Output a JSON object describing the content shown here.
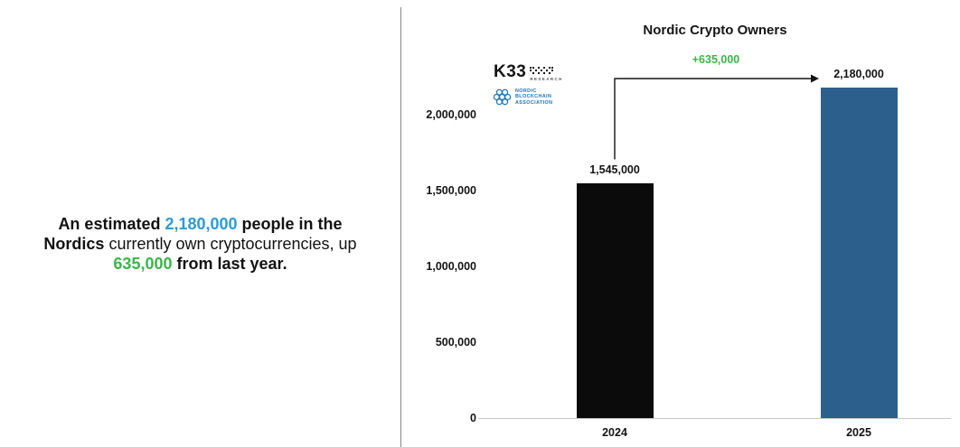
{
  "headline": {
    "segments": [
      {
        "text": "An estimated ",
        "style": "bold"
      },
      {
        "text": "2,180,000",
        "style": "blue"
      },
      {
        "text": " people in the Nordics",
        "style": "bold"
      },
      {
        "text": " currently own cryptocurrencies, up ",
        "style": "normal"
      },
      {
        "text": "635,000",
        "style": "green"
      },
      {
        "text": " from last year.",
        "style": "bold"
      }
    ]
  },
  "logos": {
    "k33": {
      "name": "K33",
      "sub": "RESEARCH"
    },
    "nordic_blockchain": {
      "lines": [
        "NORDIC",
        "BLOCKCHAIN",
        "ASSOCIATION"
      ]
    }
  },
  "chart_data": {
    "type": "bar",
    "title": "Nordic Crypto Owners",
    "categories": [
      "2024",
      "2025"
    ],
    "values": [
      1545000,
      2180000
    ],
    "value_labels": [
      "1,545,000",
      "2,180,000"
    ],
    "bar_colors": [
      "#0b0b0b",
      "#2d5f8c"
    ],
    "annotation": {
      "text": "+635,000",
      "color": "#3bb54a",
      "from": "2024",
      "to": "2025"
    },
    "y_ticks": [
      {
        "value": 0,
        "label": "0"
      },
      {
        "value": 500000,
        "label": "500,000"
      },
      {
        "value": 1000000,
        "label": "1,000,000"
      },
      {
        "value": 1500000,
        "label": "1,500,000"
      },
      {
        "value": 2000000,
        "label": "2,000,000"
      }
    ],
    "ylim": [
      0,
      2500000
    ],
    "xlabel": "",
    "ylabel": "",
    "grid": false,
    "legend": false
  },
  "colors": {
    "highlight_blue": "#2b9bd7",
    "highlight_green": "#3cb44a",
    "bar_2024": "#0b0b0b",
    "bar_2025": "#2d5f8c",
    "nba_logo_blue": "#1b75bb",
    "text": "#121212",
    "axis_line": "#c9c9c9",
    "divider": "#858585"
  }
}
